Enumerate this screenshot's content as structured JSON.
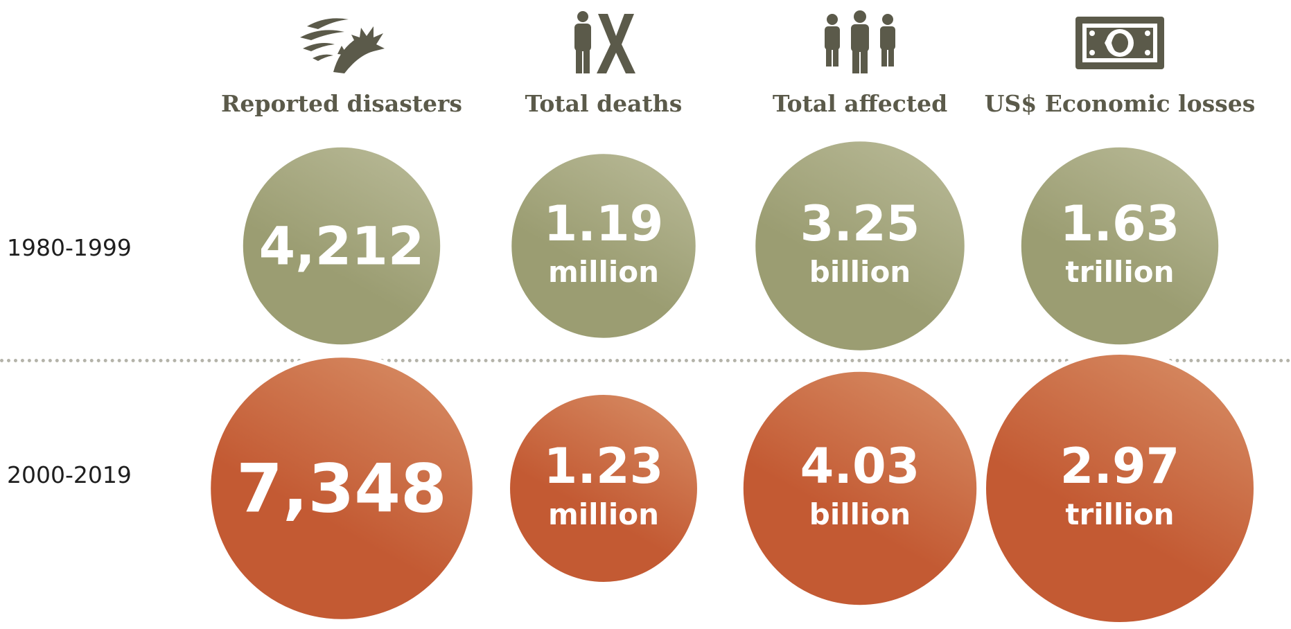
{
  "chart_data": {
    "type": "bubble",
    "title": "",
    "categories": [
      "Reported disasters",
      "Total deaths",
      "Total affected",
      "US$ Economic losses"
    ],
    "icons": [
      "storm-icon",
      "person-death-icon",
      "people-group-icon",
      "banknote-icon"
    ],
    "colors": {
      "period_1": "#9b9d72",
      "period_2": "#c35a33",
      "label": "#5b5a4a"
    },
    "series": [
      {
        "name": "1980-1999",
        "values": [
          4212,
          1.19,
          3.25,
          1.63
        ],
        "display": [
          "4,212",
          "1.19",
          "3.25",
          "1.63"
        ],
        "units": [
          "",
          "million",
          "billion",
          "trillion"
        ]
      },
      {
        "name": "2000-2019",
        "values": [
          7348,
          1.23,
          4.03,
          2.97
        ],
        "display": [
          "7,348",
          "1.23",
          "4.03",
          "2.97"
        ],
        "units": [
          "",
          "million",
          "billion",
          "trillion"
        ]
      }
    ]
  }
}
